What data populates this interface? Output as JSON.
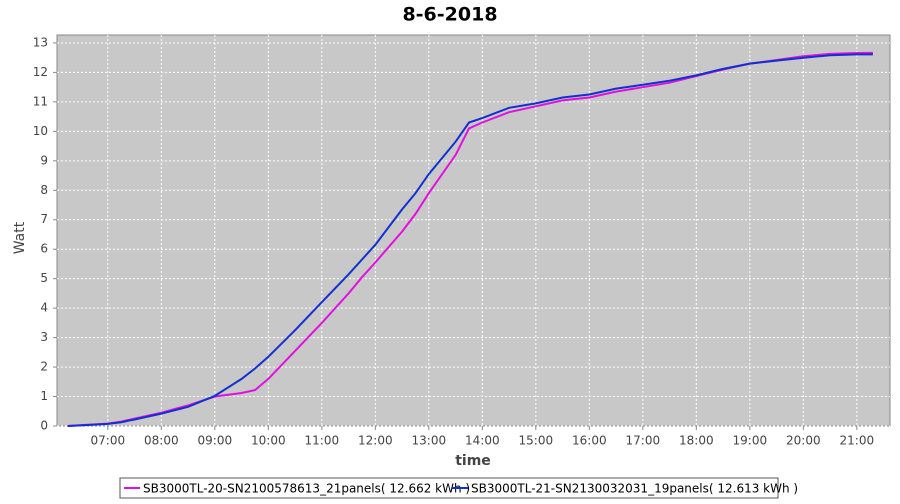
{
  "chart_data": {
    "type": "line",
    "title": "8-6-2018",
    "x_label": "time",
    "y_label": "Watt",
    "x": [
      6.25,
      6.5,
      7,
      7.25,
      7.5,
      8,
      8.5,
      9,
      9.5,
      9.75,
      10,
      10.5,
      11,
      11.5,
      11.75,
      12,
      12.5,
      12.75,
      13,
      13.5,
      13.75,
      14,
      14.5,
      15,
      15.5,
      16,
      16.5,
      17,
      17.5,
      18,
      18.5,
      19,
      19.5,
      20,
      20.5,
      21,
      21.3
    ],
    "series": [
      {
        "name": "SB3000TL-20-SN2100578613_21panels( 12.662 kWh )",
        "color": "#e010e0",
        "values": [
          0,
          0.03,
          0.08,
          0.15,
          0.25,
          0.45,
          0.7,
          1.0,
          1.12,
          1.22,
          1.6,
          2.55,
          3.5,
          4.5,
          5.05,
          5.55,
          6.6,
          7.2,
          7.9,
          9.2,
          10.1,
          10.3,
          10.65,
          10.85,
          11.05,
          11.15,
          11.35,
          11.5,
          11.65,
          11.88,
          12.1,
          12.3,
          12.42,
          12.55,
          12.63,
          12.66,
          12.662
        ]
      },
      {
        "name": "SB3000TL-21-SN2130032031_19panels( 12.613 kWh )",
        "color": "#1030d0",
        "values": [
          0,
          0.02,
          0.07,
          0.13,
          0.22,
          0.42,
          0.65,
          1.02,
          1.6,
          1.95,
          2.35,
          3.25,
          4.2,
          5.15,
          5.65,
          6.15,
          7.35,
          7.9,
          8.55,
          9.65,
          10.3,
          10.45,
          10.8,
          10.95,
          11.15,
          11.25,
          11.45,
          11.58,
          11.72,
          11.9,
          12.12,
          12.3,
          12.4,
          12.5,
          12.58,
          12.61,
          12.613
        ]
      }
    ],
    "xlim": [
      6.05,
      21.62
    ],
    "xticks": [
      {
        "value": 7,
        "label": "07:00"
      },
      {
        "value": 8,
        "label": "08:00"
      },
      {
        "value": 9,
        "label": "09:00"
      },
      {
        "value": 10,
        "label": "10:00"
      },
      {
        "value": 11,
        "label": "11:00"
      },
      {
        "value": 12,
        "label": "12:00"
      },
      {
        "value": 13,
        "label": "13:00"
      },
      {
        "value": 14,
        "label": "14:00"
      },
      {
        "value": 15,
        "label": "15:00"
      },
      {
        "value": 16,
        "label": "16:00"
      },
      {
        "value": 17,
        "label": "17:00"
      },
      {
        "value": 18,
        "label": "18:00"
      },
      {
        "value": 19,
        "label": "19:00"
      },
      {
        "value": 20,
        "label": "20:00"
      },
      {
        "value": 21,
        "label": "21:00"
      }
    ],
    "ylim": [
      0,
      13.27
    ],
    "yticks": [
      0,
      1,
      2,
      3,
      4,
      5,
      6,
      7,
      8,
      9,
      10,
      11,
      12,
      13
    ],
    "grid": true
  }
}
